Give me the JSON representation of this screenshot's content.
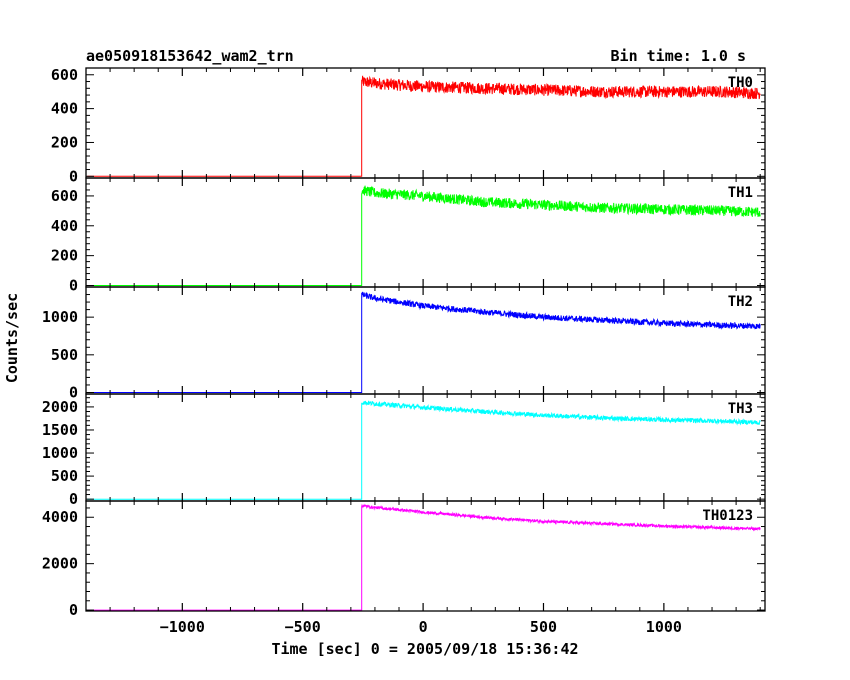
{
  "header": {
    "title": "ae050918153642_wam2_trn",
    "bin_time": "Bin time: 1.0 s"
  },
  "chart_data": {
    "type": "line",
    "xlabel": "Time [sec] 0 = 2005/09/18 15:36:42",
    "ylabel": "Counts/sec",
    "xlim": [
      -1400,
      1420
    ],
    "x_ticks": [
      -1000,
      -500,
      0,
      500,
      1000
    ],
    "x_tick_labels": [
      "−1000",
      "−500",
      "0",
      "500",
      "1000"
    ],
    "trigger_time": -255,
    "data_end": 1400,
    "panels": [
      {
        "name": "TH0",
        "color": "#ff0000",
        "ylim": [
          -10,
          640
        ],
        "yticks": [
          0,
          200,
          400,
          600
        ],
        "pre_level": 0,
        "x": [
          -255,
          -200,
          0,
          250,
          500,
          750,
          1000,
          1250,
          1400
        ],
        "y": [
          560,
          550,
          530,
          520,
          510,
          500,
          500,
          500,
          490
        ],
        "noise": 35
      },
      {
        "name": "TH1",
        "color": "#00ff00",
        "ylim": [
          -10,
          720
        ],
        "yticks": [
          0,
          200,
          400,
          600
        ],
        "pre_level": 0,
        "x": [
          -255,
          -200,
          0,
          250,
          500,
          750,
          1000,
          1250,
          1400
        ],
        "y": [
          640,
          620,
          600,
          560,
          540,
          520,
          510,
          500,
          490
        ],
        "noise": 35
      },
      {
        "name": "TH2",
        "color": "#0000ff",
        "ylim": [
          -20,
          1400
        ],
        "yticks": [
          0,
          500,
          1000
        ],
        "pre_level": 0,
        "x": [
          -255,
          -200,
          0,
          250,
          500,
          750,
          1000,
          1250,
          1400
        ],
        "y": [
          1300,
          1250,
          1150,
          1070,
          1000,
          960,
          920,
          890,
          880
        ],
        "noise": 40
      },
      {
        "name": "TH3",
        "color": "#00ffff",
        "ylim": [
          -40,
          2280
        ],
        "yticks": [
          0,
          500,
          1000,
          1500,
          2000
        ],
        "pre_level": 0,
        "x": [
          -255,
          -200,
          0,
          250,
          500,
          750,
          1000,
          1250,
          1400
        ],
        "y": [
          2100,
          2070,
          1990,
          1900,
          1820,
          1760,
          1720,
          1690,
          1660
        ],
        "noise": 50
      },
      {
        "name": "TH0123",
        "color": "#ff00ff",
        "ylim": [
          -40,
          4700
        ],
        "yticks": [
          0,
          2000,
          4000
        ],
        "pre_level": 0,
        "x": [
          -255,
          -200,
          0,
          250,
          500,
          750,
          1000,
          1250,
          1400
        ],
        "y": [
          4500,
          4420,
          4220,
          4000,
          3820,
          3720,
          3620,
          3540,
          3500
        ],
        "noise": 60
      }
    ]
  }
}
